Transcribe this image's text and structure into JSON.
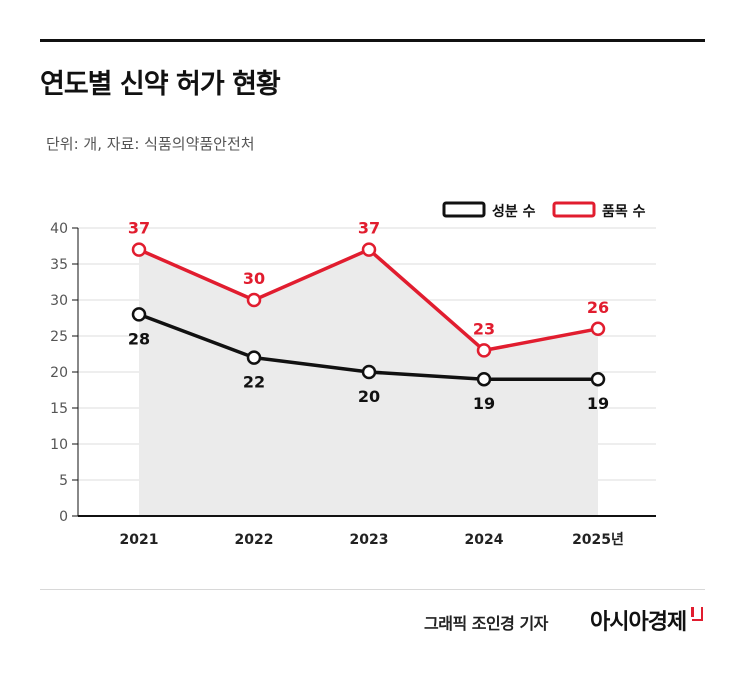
{
  "title": "연도별 신약 허가 현황",
  "subtitle": "단위: 개, 자료: 식품의약품안전처",
  "credit": "그래픽  조인경 기자",
  "brand": "아시아경제",
  "colors": {
    "series_a": "#111111",
    "series_b": "#e11d2f",
    "fill": "#ebebeb",
    "grid": "#dddddd"
  },
  "chart_data": {
    "type": "line",
    "categories": [
      "2021",
      "2022",
      "2023",
      "2024",
      "2025년"
    ],
    "ylim": [
      0,
      40
    ],
    "yticks": [
      0,
      5,
      10,
      15,
      20,
      25,
      30,
      35,
      40
    ],
    "grid": true,
    "legend_position": "top-right",
    "series": [
      {
        "name": "성분 수",
        "values": [
          28,
          22,
          20,
          19,
          19
        ],
        "color": "#111111"
      },
      {
        "name": "품목 수",
        "values": [
          37,
          30,
          37,
          23,
          26
        ],
        "color": "#e11d2f"
      }
    ]
  }
}
